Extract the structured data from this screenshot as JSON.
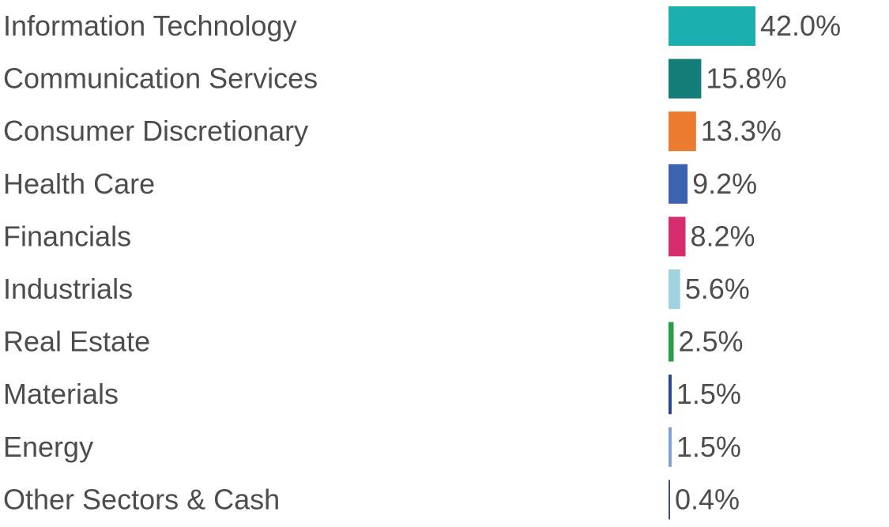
{
  "chart_data": {
    "type": "bar",
    "orientation": "horizontal",
    "categories": [
      "Information Technology",
      "Communication Services",
      "Consumer Discretionary",
      "Health Care",
      "Financials",
      "Industrials",
      "Real Estate",
      "Materials",
      "Energy",
      "Other Sectors & Cash"
    ],
    "values": [
      42.0,
      15.8,
      13.3,
      9.2,
      8.2,
      5.6,
      2.5,
      1.5,
      1.5,
      0.4
    ],
    "value_labels": [
      "42.0%",
      "15.8%",
      "13.3%",
      "9.2%",
      "8.2%",
      "5.6%",
      "2.5%",
      "1.5%",
      "1.5%",
      "0.4%"
    ],
    "colors": [
      "#1aaeae",
      "#137d77",
      "#ec7b30",
      "#3a62ae",
      "#d52d6e",
      "#9fd3dd",
      "#27a045",
      "#27448e",
      "#7f9fd5",
      "#3f4a7c"
    ],
    "title": "",
    "xlabel": "",
    "ylabel": "",
    "xlim": [
      0,
      42.0
    ],
    "grid": false,
    "legend": "none"
  }
}
